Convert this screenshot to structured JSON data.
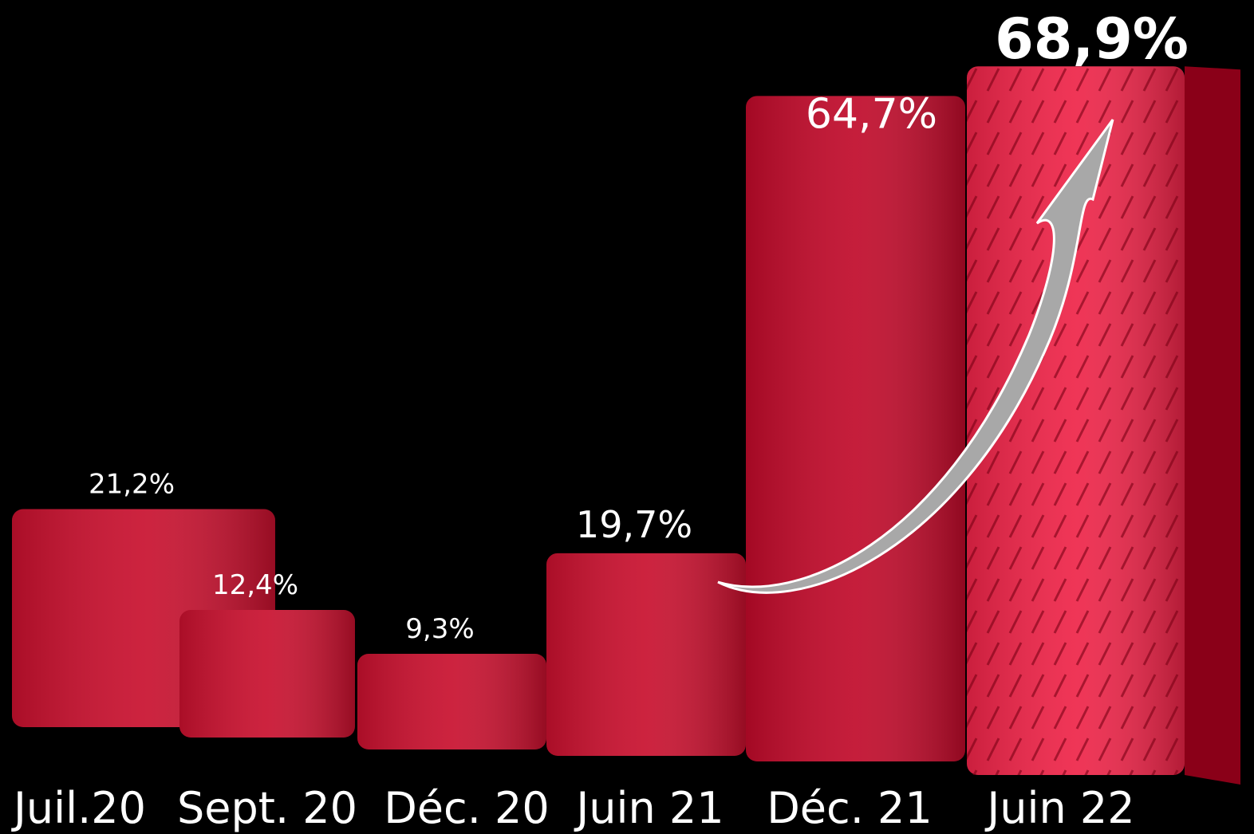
{
  "chart_data": {
    "type": "bar",
    "categories": [
      "Juil.20",
      "Sept. 20",
      "Déc. 20",
      "Juin 21",
      "Déc. 21",
      "Juin 22"
    ],
    "values": [
      21.2,
      12.4,
      9.3,
      19.7,
      64.7,
      68.9
    ],
    "value_labels": [
      "21,2%",
      "12,4%",
      "9,3%",
      "19,7%",
      "64,7%",
      "68,9%"
    ],
    "colors": [
      "#c8102e",
      "#c8102e",
      "#c8102e",
      "#c8102e",
      "#c00a2a",
      "#ee2448"
    ]
  }
}
